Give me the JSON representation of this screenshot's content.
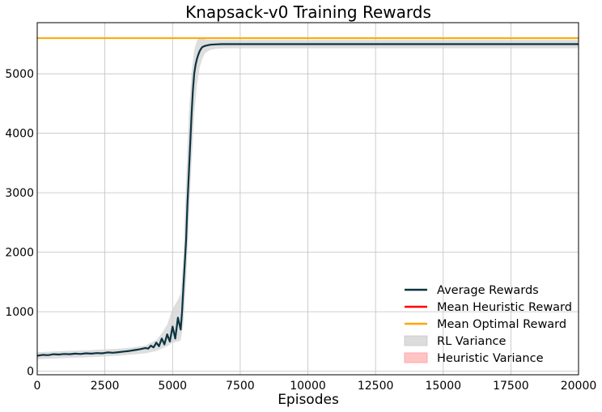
{
  "colors": {
    "average": "#0b3440",
    "heuristic": "#ff0000",
    "optimal": "#ffa500",
    "rl_variance": "#d3d3d3",
    "heuristic_variance": "#ffb3b3",
    "grid": "#c0c0c0"
  },
  "chart_data": {
    "type": "line",
    "title": "Knapsack-v0 Training Rewards",
    "xlabel": "Episodes",
    "ylabel": "",
    "xlim": [
      0,
      20000
    ],
    "ylim": [
      -60,
      5860
    ],
    "grid": true,
    "legend_position": "lower-right",
    "xticks": [
      "0",
      "2500",
      "5000",
      "7500",
      "10000",
      "12500",
      "15000",
      "17500",
      "20000"
    ],
    "yticks": [
      "0",
      "1000",
      "2000",
      "3000",
      "4000",
      "5000"
    ],
    "legend": [
      "Average Rewards",
      "Mean Heuristic Reward",
      "Mean Optimal Reward",
      "RL Variance",
      "Heuristic Variance"
    ],
    "series": [
      {
        "name": "Average Rewards",
        "x": [
          0,
          200,
          400,
          600,
          800,
          1000,
          1200,
          1400,
          1600,
          1800,
          2000,
          2200,
          2400,
          2600,
          2800,
          3000,
          3200,
          3400,
          3600,
          3800,
          4000,
          4100,
          4200,
          4300,
          4400,
          4500,
          4600,
          4700,
          4800,
          4900,
          5000,
          5100,
          5200,
          5300,
          5350,
          5400,
          5450,
          5500,
          5550,
          5600,
          5650,
          5700,
          5750,
          5800,
          5850,
          5900,
          5950,
          6000,
          6050,
          6100,
          6200,
          6300,
          6400,
          6600,
          6800,
          7000,
          7500,
          8000,
          9000,
          10000,
          11000,
          12000,
          13000,
          14000,
          15000,
          16000,
          17000,
          18000,
          19000,
          20000
        ],
        "y": [
          260,
          275,
          270,
          285,
          280,
          290,
          285,
          295,
          290,
          300,
          295,
          305,
          300,
          315,
          310,
          320,
          330,
          340,
          355,
          370,
          390,
          380,
          430,
          400,
          480,
          420,
          550,
          450,
          620,
          500,
          750,
          550,
          900,
          700,
          1000,
          1400,
          1800,
          2200,
          2800,
          3300,
          3800,
          4300,
          4700,
          5000,
          5150,
          5250,
          5320,
          5380,
          5420,
          5450,
          5470,
          5480,
          5490,
          5495,
          5500,
          5500,
          5500,
          5500,
          5500,
          5500,
          5500,
          5500,
          5500,
          5500,
          5500,
          5500,
          5500,
          5500,
          5500,
          5500
        ]
      },
      {
        "name": "Mean Optimal Reward",
        "x": [
          0,
          20000
        ],
        "y": [
          5600,
          5600
        ]
      }
    ],
    "variance_band": {
      "name": "RL Variance",
      "x": [
        0,
        1000,
        2000,
        3000,
        3500,
        4000,
        4200,
        4400,
        4600,
        4800,
        5000,
        5200,
        5300,
        5400,
        5500,
        5600,
        5700,
        5800,
        5900,
        6000,
        6100,
        6200,
        6400,
        6600,
        7000,
        8000,
        10000,
        12000,
        14000,
        16000,
        18000,
        20000
      ],
      "lower": [
        200,
        220,
        235,
        260,
        280,
        300,
        320,
        340,
        380,
        420,
        480,
        500,
        520,
        800,
        1500,
        2500,
        3500,
        4300,
        4800,
        5100,
        5250,
        5350,
        5400,
        5420,
        5430,
        5430,
        5430,
        5430,
        5430,
        5430,
        5430,
        5430
      ],
      "upper": [
        320,
        340,
        355,
        380,
        400,
        430,
        480,
        520,
        640,
        780,
        1050,
        1200,
        1300,
        1900,
        3200,
        4300,
        5000,
        5400,
        5560,
        5600,
        5600,
        5580,
        5570,
        5570,
        5570,
        5570,
        5570,
        5570,
        5570,
        5570,
        5570,
        5570
      ]
    }
  }
}
